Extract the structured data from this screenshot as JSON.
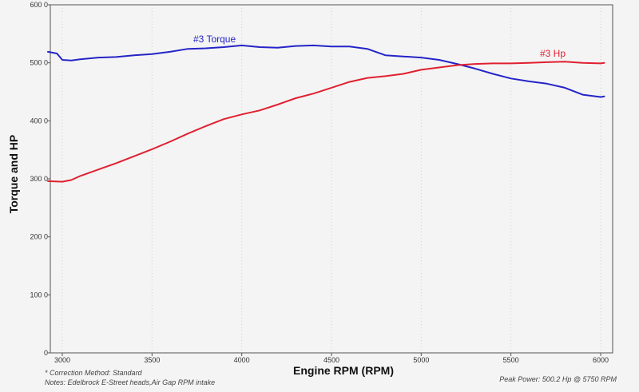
{
  "chart_data": {
    "type": "line",
    "xlabel": "Engine RPM (RPM)",
    "ylabel": "Torque and HP",
    "xlim": [
      3000,
      6000
    ],
    "ylim": [
      0,
      600
    ],
    "x_ticks": [
      "3000",
      "3500",
      "4000",
      "4500",
      "5000",
      "5500",
      "6000"
    ],
    "y_ticks": [
      "0",
      "100 0",
      "200 0",
      "300 0",
      "400 0",
      "500 0",
      "600 0"
    ],
    "series": [
      {
        "name": "#3 Torque",
        "color": "#2424c8",
        "x": [
          2920,
          2970,
          3000,
          3050,
          3100,
          3200,
          3300,
          3400,
          3500,
          3600,
          3700,
          3800,
          3900,
          4000,
          4100,
          4200,
          4300,
          4400,
          4500,
          4600,
          4700,
          4800,
          4900,
          5000,
          5100,
          5200,
          5300,
          5400,
          5500,
          5600,
          5700,
          5800,
          5900,
          6000,
          6020
        ],
        "values": [
          519,
          516,
          505,
          504,
          506,
          509,
          510,
          513,
          515,
          519,
          524,
          525,
          527,
          530,
          527,
          526,
          529,
          530,
          528,
          528,
          524,
          513,
          511,
          509,
          505,
          498,
          490,
          481,
          473,
          468,
          464,
          457,
          445,
          441,
          442
        ]
      },
      {
        "name": "#3 Hp",
        "color": "#e02030",
        "x": [
          2920,
          3000,
          3050,
          3100,
          3200,
          3300,
          3400,
          3500,
          3600,
          3700,
          3800,
          3900,
          4000,
          4100,
          4200,
          4300,
          4400,
          4500,
          4600,
          4700,
          4800,
          4900,
          5000,
          5100,
          5200,
          5300,
          5400,
          5500,
          5600,
          5700,
          5800,
          5900,
          6000,
          6020
        ],
        "values": [
          296,
          295,
          298,
          305,
          316,
          327,
          339,
          351,
          364,
          378,
          391,
          403,
          411,
          418,
          428,
          439,
          447,
          457,
          467,
          474,
          477,
          481,
          488,
          492,
          496,
          498,
          499,
          499,
          500,
          501,
          502,
          500,
          499,
          500
        ]
      }
    ]
  },
  "footer": {
    "correction": "* Correction Method: Standard",
    "notes": "Notes: Edelbrock E-Street  heads,Air Gap RPM intake",
    "peak_power": "Peak Power: 500.2 Hp @ 5750 RPM"
  }
}
